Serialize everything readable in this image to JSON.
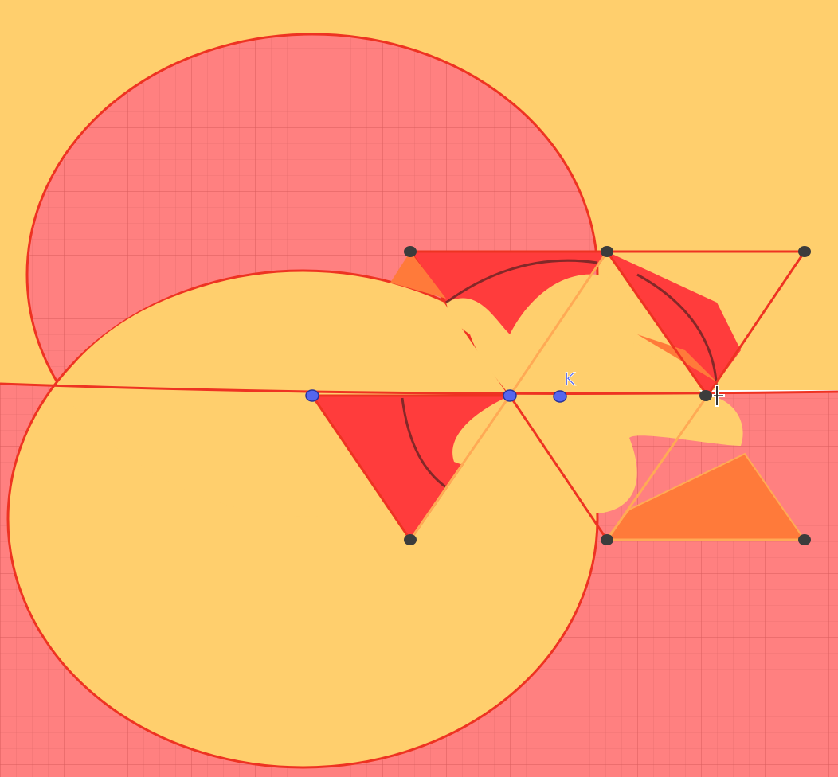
{
  "colors": {
    "background_yellow": "#ffcf6d",
    "background_pink": "#ff8080",
    "grid_line": "#e06868",
    "stroke_red": "#ee3322",
    "fill_red": "#ff3c3c",
    "fill_orange": "#ff7a3a",
    "fill_yellow": "#ffcf6d",
    "point_dark": "#3c3c3c",
    "point_blue": "#5566ee",
    "label_blue": "#5566ee",
    "arc_dark": "#502020"
  },
  "labels": {
    "point_k": "K"
  },
  "points": {
    "blue": [
      "left-center",
      "middle-center",
      "K"
    ],
    "dark": [
      "top-left-vertex",
      "top-middle-vertex",
      "top-right-vertex",
      "right-vertex",
      "bottom-left-vertex",
      "bottom-middle-vertex",
      "bottom-right-vertex"
    ]
  },
  "cursor_icon": "move-cursor-icon"
}
